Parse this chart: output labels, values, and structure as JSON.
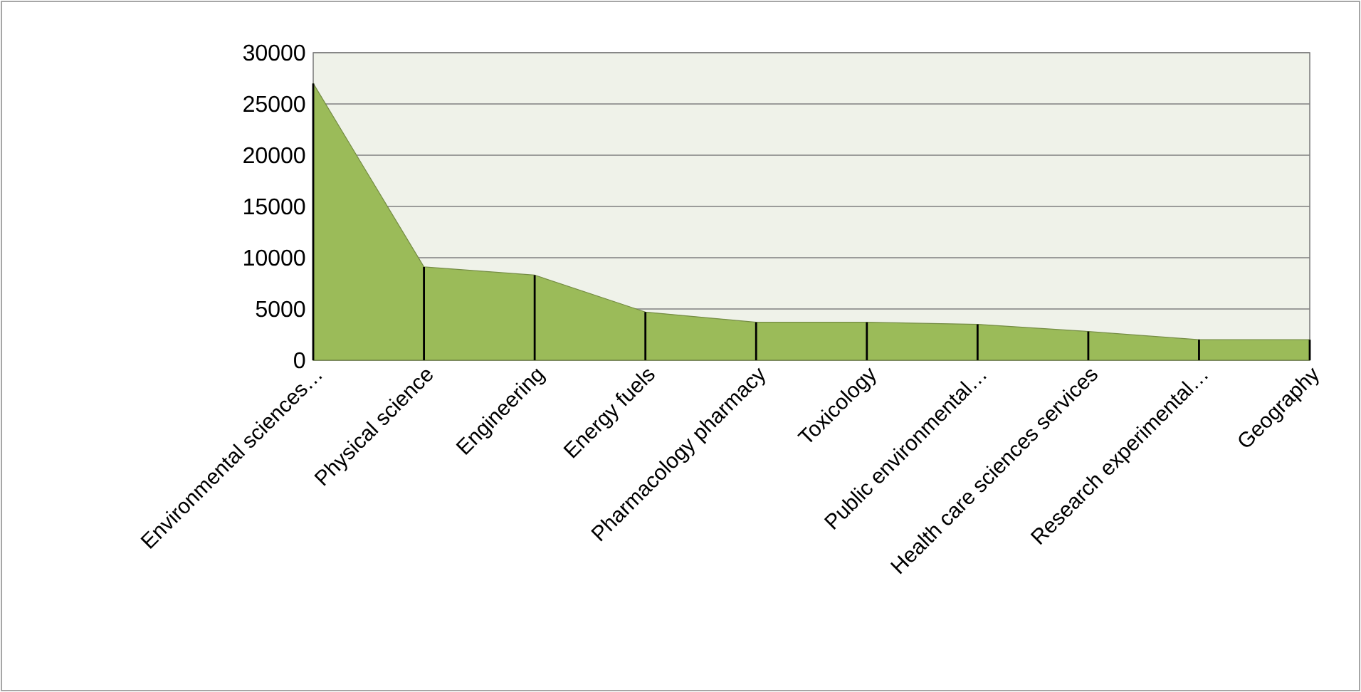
{
  "chart_data": {
    "type": "area",
    "categories": [
      "Environmental sciences…",
      "Physical science",
      "Engineering",
      "Energy fuels",
      "Pharmacology pharmacy",
      "Toxicology",
      "Public environmental…",
      "Health care sciences services",
      "Research experimental…",
      "Geography"
    ],
    "series": [
      {
        "color": "#9bbb59",
        "values": [
          27000,
          9100,
          8300,
          4700,
          3700,
          3700,
          3500,
          2800,
          2000,
          2000
        ]
      },
      {
        "type": "bar",
        "color": "#000000",
        "values": [
          27000,
          9100,
          8300,
          4700,
          3700,
          3700,
          3500,
          2800,
          2000,
          2000
        ]
      }
    ],
    "ylim": [
      0,
      30000
    ],
    "yticks": [
      0,
      5000,
      10000,
      15000,
      20000,
      25000,
      30000
    ],
    "grid": "y"
  }
}
